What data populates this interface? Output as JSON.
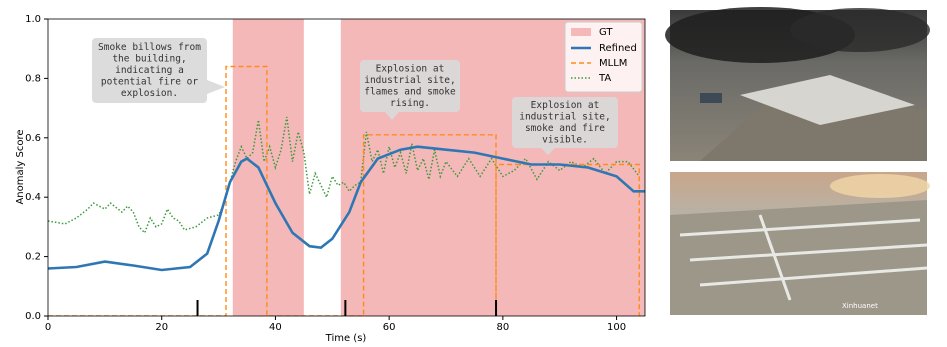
{
  "chart_data": {
    "type": "line",
    "xlabel": "Time (s)",
    "ylabel": "Anomaly Score",
    "xlim": [
      0,
      105
    ],
    "ylim": [
      0,
      1
    ],
    "xticks": [
      0,
      20,
      40,
      60,
      80,
      100
    ],
    "yticks": [
      {
        "value": 0,
        "label": "0.0"
      },
      {
        "value": 0.2,
        "label": "0.2"
      },
      {
        "value": 0.4,
        "label": "0.4"
      },
      {
        "value": 0.6,
        "label": "0.6"
      },
      {
        "value": 0.8,
        "label": "0.8"
      },
      {
        "value": 1,
        "label": "1.0"
      }
    ],
    "gt": {
      "name": "GT",
      "color": "#f4b8b8",
      "regions": [
        [
          32.5,
          45
        ],
        [
          51.5,
          105
        ]
      ]
    },
    "series": [
      {
        "name": "Refined",
        "color": "#2f77b4",
        "style": "solid",
        "x": [
          0,
          5,
          10,
          15,
          20,
          25,
          28,
          30,
          32,
          34,
          35,
          37,
          40,
          43,
          46,
          48,
          50,
          53,
          55,
          58,
          62,
          65,
          70,
          75,
          80,
          85,
          90,
          95,
          100,
          103,
          105
        ],
        "values": [
          0.16,
          0.165,
          0.183,
          0.17,
          0.155,
          0.165,
          0.21,
          0.32,
          0.45,
          0.52,
          0.53,
          0.5,
          0.38,
          0.28,
          0.235,
          0.23,
          0.26,
          0.35,
          0.45,
          0.53,
          0.56,
          0.57,
          0.56,
          0.55,
          0.53,
          0.51,
          0.51,
          0.5,
          0.47,
          0.42,
          0.42
        ]
      },
      {
        "name": "MLLM",
        "color": "#ff8c1a",
        "style": "dashed",
        "x": [
          0,
          31.3,
          31.3,
          38.5,
          38.5,
          55.5,
          55.5,
          78.8,
          78.8,
          78.8,
          104,
          104,
          105
        ],
        "values": [
          0,
          0,
          0.84,
          0.84,
          0,
          0,
          0.61,
          0.61,
          0,
          0.51,
          0.51,
          0,
          0
        ]
      },
      {
        "name": "TA",
        "color": "#3a9a3a",
        "style": "dotted",
        "x": [
          0,
          3,
          5,
          7,
          8,
          10,
          11,
          13,
          14,
          15,
          16,
          17,
          18,
          19,
          20,
          21,
          22,
          23,
          24,
          26,
          28,
          30,
          31,
          32,
          33,
          34,
          35,
          36,
          37,
          38,
          39,
          40,
          41,
          42,
          43,
          44,
          45,
          46,
          47,
          48,
          49,
          50,
          51,
          52,
          53,
          54,
          55,
          56,
          57,
          58,
          59,
          60,
          61,
          62,
          63,
          64,
          65,
          66,
          67,
          68,
          69,
          70,
          72,
          74,
          76,
          78,
          80,
          82,
          84,
          86,
          88,
          90,
          92,
          94,
          96,
          98,
          100,
          102,
          104
        ],
        "values": [
          0.32,
          0.31,
          0.33,
          0.36,
          0.38,
          0.36,
          0.38,
          0.35,
          0.37,
          0.35,
          0.3,
          0.28,
          0.33,
          0.3,
          0.31,
          0.36,
          0.33,
          0.32,
          0.29,
          0.3,
          0.33,
          0.34,
          0.38,
          0.45,
          0.52,
          0.57,
          0.53,
          0.55,
          0.66,
          0.52,
          0.57,
          0.5,
          0.56,
          0.67,
          0.52,
          0.62,
          0.55,
          0.41,
          0.48,
          0.44,
          0.4,
          0.47,
          0.44,
          0.45,
          0.42,
          0.44,
          0.45,
          0.62,
          0.52,
          0.56,
          0.48,
          0.57,
          0.5,
          0.55,
          0.48,
          0.58,
          0.49,
          0.53,
          0.46,
          0.56,
          0.47,
          0.52,
          0.47,
          0.53,
          0.47,
          0.53,
          0.47,
          0.49,
          0.53,
          0.46,
          0.52,
          0.49,
          0.52,
          0.5,
          0.53,
          0.48,
          0.52,
          0.52,
          0.47
        ]
      }
    ],
    "event_markers": [
      26.3,
      52.3,
      78.8
    ],
    "annotations": [
      {
        "lines": [
          "Smoke billows from",
          "the building,",
          "indicating a",
          "potential fire or",
          "explosion."
        ]
      },
      {
        "lines": [
          "Explosion at",
          "industrial site,",
          "flames and smoke",
          "rising."
        ]
      },
      {
        "lines": [
          "Explosion at",
          "industrial site,",
          "smoke and fire",
          "visible."
        ]
      }
    ],
    "legend": "upper right",
    "images": [
      {
        "watermark": ""
      },
      {
        "watermark": "Xinhuanet"
      }
    ]
  }
}
